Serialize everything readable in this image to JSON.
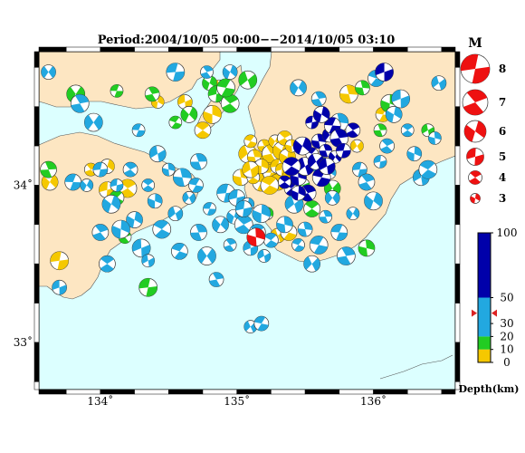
{
  "title": "Period:2004/10/05 00:00−−2014/10/05 03:10",
  "x_ticks": [
    {
      "value": 134,
      "label": "134˚"
    },
    {
      "value": 135,
      "label": "135˚"
    },
    {
      "value": 136,
      "label": "136˚"
    }
  ],
  "y_ticks": [
    {
      "value": 34,
      "label": "34˚"
    },
    {
      "value": 33,
      "label": "33˚"
    }
  ],
  "magnitude_legend": {
    "title": "M",
    "entries": [
      {
        "m": 8,
        "label": "8"
      },
      {
        "m": 7,
        "label": "7"
      },
      {
        "m": 6,
        "label": "6"
      },
      {
        "m": 5,
        "label": "5"
      },
      {
        "m": 4,
        "label": "4"
      },
      {
        "m": 3,
        "label": "3"
      }
    ]
  },
  "depth_colorbar": {
    "title": "Depth(km)",
    "segments": [
      {
        "from": 0,
        "to": 10,
        "color": "#f5c800"
      },
      {
        "from": 10,
        "to": 20,
        "color": "#22cc22"
      },
      {
        "from": 20,
        "to": 50,
        "color": "#22a8e0"
      },
      {
        "from": 50,
        "to": 100,
        "color": "#0000aa"
      }
    ],
    "labels": [
      "0",
      "10",
      "20",
      "30",
      "50",
      "100"
    ],
    "marker_depth": 38,
    "marker_color": "#dd2222"
  },
  "colors": {
    "sea": "#dcffff",
    "land": "#fde6c2",
    "coast": "#555555",
    "shallow": "#f5c800",
    "mid": "#22cc22",
    "deep": "#22a8e0",
    "deepest": "#0000aa",
    "highlight": "#ee1111"
  },
  "chart_data": {
    "type": "scatter",
    "title": "Period:2004/10/05 00:00−−2014/10/05 03:10",
    "xlabel": "",
    "ylabel": "",
    "xlim": [
      133.55,
      136.6
    ],
    "ylim": [
      32.7,
      34.85
    ],
    "series": [
      {
        "name": "Depth 0-10 km",
        "color": "#f5c800",
        "points": [
          [
            133.63,
            34.02
          ],
          [
            133.7,
            33.52
          ],
          [
            133.93,
            34.1
          ],
          [
            134.05,
            34.12
          ],
          [
            134.05,
            33.97
          ],
          [
            134.2,
            33.98
          ],
          [
            134.42,
            34.53
          ],
          [
            134.62,
            34.53
          ],
          [
            134.75,
            34.35
          ],
          [
            134.82,
            34.45
          ],
          [
            134.87,
            34.63
          ],
          [
            134.92,
            34.55
          ],
          [
            135.03,
            34.05
          ],
          [
            135.08,
            34.2
          ],
          [
            135.1,
            34.28
          ],
          [
            135.13,
            34.18
          ],
          [
            135.15,
            34.1
          ],
          [
            135.18,
            34.02
          ],
          [
            135.2,
            34.25
          ],
          [
            135.22,
            34.15
          ],
          [
            135.25,
            34.08
          ],
          [
            135.25,
            34.2
          ],
          [
            135.28,
            34.28
          ],
          [
            135.3,
            34.12
          ],
          [
            135.3,
            34.02
          ],
          [
            135.33,
            34.22
          ],
          [
            135.33,
            34.1
          ],
          [
            135.35,
            34.3
          ],
          [
            135.37,
            34.18
          ],
          [
            135.4,
            34.05
          ],
          [
            135.12,
            34.05
          ],
          [
            135.18,
            34.12
          ],
          [
            135.1,
            34.1
          ],
          [
            135.24,
            34.0
          ],
          [
            135.4,
            34.25
          ],
          [
            135.3,
            33.68
          ],
          [
            135.38,
            33.7
          ],
          [
            135.82,
            34.58
          ],
          [
            135.88,
            34.25
          ],
          [
            136.07,
            34.45
          ]
        ]
      },
      {
        "name": "Depth 10-20 km",
        "color": "#22cc22",
        "points": [
          [
            133.62,
            34.1
          ],
          [
            133.82,
            34.58
          ],
          [
            134.12,
            34.6
          ],
          [
            134.38,
            34.58
          ],
          [
            134.65,
            34.45
          ],
          [
            134.35,
            33.35
          ],
          [
            134.18,
            33.67
          ],
          [
            134.8,
            34.65
          ],
          [
            134.85,
            34.58
          ],
          [
            134.95,
            34.52
          ],
          [
            135.22,
            33.82
          ],
          [
            135.48,
            34.0
          ],
          [
            135.55,
            33.85
          ],
          [
            136.12,
            34.52
          ],
          [
            136.4,
            34.35
          ],
          [
            134.12,
            33.92
          ],
          [
            135.95,
            33.6
          ],
          [
            135.08,
            34.67
          ],
          [
            134.55,
            34.4
          ],
          [
            135.92,
            34.62
          ],
          [
            135.7,
            33.98
          ],
          [
            134.92,
            34.62
          ],
          [
            136.05,
            34.35
          ]
        ]
      },
      {
        "name": "Depth 20-50 km",
        "color": "#22a8e0",
        "points": [
          [
            133.62,
            34.72
          ],
          [
            133.8,
            34.02
          ],
          [
            133.85,
            34.52
          ],
          [
            133.9,
            34.0
          ],
          [
            134.0,
            34.1
          ],
          [
            134.0,
            33.7
          ],
          [
            134.08,
            33.88
          ],
          [
            134.12,
            34.0
          ],
          [
            134.22,
            34.1
          ],
          [
            134.25,
            33.78
          ],
          [
            134.3,
            33.6
          ],
          [
            134.35,
            34.0
          ],
          [
            134.4,
            33.9
          ],
          [
            134.42,
            34.2
          ],
          [
            134.45,
            33.72
          ],
          [
            134.5,
            34.1
          ],
          [
            134.55,
            33.82
          ],
          [
            134.58,
            33.58
          ],
          [
            134.6,
            34.05
          ],
          [
            134.65,
            33.92
          ],
          [
            134.7,
            34.0
          ],
          [
            134.72,
            33.7
          ],
          [
            134.78,
            33.55
          ],
          [
            134.8,
            33.85
          ],
          [
            134.85,
            33.4
          ],
          [
            134.88,
            33.75
          ],
          [
            134.92,
            33.95
          ],
          [
            134.95,
            33.62
          ],
          [
            134.98,
            33.8
          ],
          [
            135.0,
            33.92
          ],
          [
            135.05,
            33.75
          ],
          [
            135.08,
            33.88
          ],
          [
            135.1,
            33.6
          ],
          [
            135.15,
            33.7
          ],
          [
            135.18,
            33.82
          ],
          [
            135.2,
            33.55
          ],
          [
            135.25,
            33.65
          ],
          [
            135.35,
            33.75
          ],
          [
            135.42,
            33.88
          ],
          [
            135.45,
            33.62
          ],
          [
            135.5,
            33.72
          ],
          [
            135.55,
            33.5
          ],
          [
            135.6,
            33.62
          ],
          [
            135.65,
            33.8
          ],
          [
            135.7,
            33.92
          ],
          [
            135.75,
            33.7
          ],
          [
            135.8,
            33.55
          ],
          [
            135.85,
            33.82
          ],
          [
            135.9,
            34.1
          ],
          [
            135.95,
            34.02
          ],
          [
            136.0,
            33.9
          ],
          [
            136.05,
            34.15
          ],
          [
            136.1,
            34.25
          ],
          [
            136.15,
            34.45
          ],
          [
            136.2,
            34.55
          ],
          [
            136.25,
            34.35
          ],
          [
            136.3,
            34.2
          ],
          [
            136.35,
            34.05
          ],
          [
            136.4,
            34.1
          ],
          [
            136.45,
            34.3
          ],
          [
            136.48,
            34.65
          ],
          [
            136.02,
            34.68
          ],
          [
            135.75,
            34.4
          ],
          [
            135.1,
            33.1
          ],
          [
            135.18,
            33.12
          ],
          [
            134.72,
            34.15
          ],
          [
            133.95,
            34.4
          ],
          [
            134.28,
            34.35
          ],
          [
            135.6,
            34.55
          ],
          [
            135.45,
            34.62
          ],
          [
            134.55,
            34.72
          ],
          [
            134.78,
            34.72
          ],
          [
            134.95,
            34.72
          ],
          [
            135.05,
            33.85
          ],
          [
            135.62,
            34.12
          ],
          [
            135.68,
            34.08
          ],
          [
            133.7,
            33.35
          ],
          [
            134.05,
            33.5
          ],
          [
            134.15,
            33.72
          ],
          [
            134.35,
            33.52
          ]
        ]
      },
      {
        "name": "Depth 50-100 km",
        "color": "#0000aa",
        "points": [
          [
            135.4,
            33.98
          ],
          [
            135.45,
            34.05
          ],
          [
            135.5,
            34.12
          ],
          [
            135.55,
            34.2
          ],
          [
            135.6,
            34.28
          ],
          [
            135.58,
            34.15
          ],
          [
            135.62,
            34.05
          ],
          [
            135.65,
            34.22
          ],
          [
            135.68,
            34.32
          ],
          [
            135.7,
            34.38
          ],
          [
            135.75,
            34.3
          ],
          [
            135.72,
            34.18
          ],
          [
            135.78,
            34.22
          ],
          [
            135.52,
            33.95
          ],
          [
            135.48,
            34.25
          ],
          [
            135.55,
            34.4
          ],
          [
            135.85,
            34.35
          ],
          [
            135.62,
            34.45
          ],
          [
            136.08,
            34.72
          ],
          [
            135.35,
            34.02
          ],
          [
            135.45,
            33.95
          ],
          [
            135.66,
            34.12
          ],
          [
            135.4,
            34.12
          ]
        ]
      },
      {
        "name": "Highlighted event",
        "color": "#ee1111",
        "points": [
          [
            135.14,
            33.67
          ]
        ]
      }
    ]
  }
}
